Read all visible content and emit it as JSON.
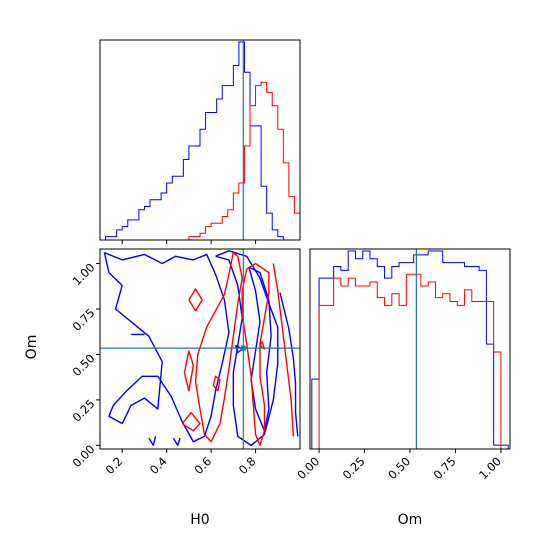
{
  "chart_data": {
    "type": "corner",
    "series_colors": [
      "#0000ff",
      "#ff0000"
    ],
    "truth_color": "#1f77b4",
    "truth": {
      "H0": 0.745,
      "Om": 0.535
    },
    "axes": [
      {
        "id": "hist_H0",
        "type": "histogram",
        "xlim": [
          0.1,
          1.0
        ],
        "xticks": [
          0.2,
          0.4,
          0.6,
          0.8
        ],
        "show_tick_labels": false,
        "bin_edges": [
          0.1,
          0.125,
          0.15,
          0.175,
          0.2,
          0.225,
          0.25,
          0.275,
          0.3,
          0.325,
          0.35,
          0.375,
          0.4,
          0.425,
          0.45,
          0.475,
          0.5,
          0.525,
          0.55,
          0.575,
          0.6,
          0.625,
          0.65,
          0.675,
          0.7,
          0.725,
          0.75,
          0.775,
          0.8,
          0.825,
          0.85,
          0.875,
          0.9,
          0.925,
          0.95,
          0.975,
          1.0
        ],
        "series": [
          {
            "color": "#0000ff",
            "values": [
              0,
              0.2,
              0.2,
              0.6,
              0.8,
              1.2,
              1.2,
              1.8,
              2.0,
              2.4,
              2.4,
              2.8,
              3.4,
              3.8,
              3.8,
              4.8,
              5.6,
              5.6,
              6.6,
              7.6,
              7.6,
              8.4,
              9.2,
              9.2,
              10.4,
              11.8,
              10.0,
              6.8,
              6.8,
              3.2,
              1.6,
              0.6,
              0.2,
              0,
              0,
              0
            ]
          },
          {
            "color": "#ff0000",
            "values": [
              0,
              0,
              0,
              0,
              0,
              0,
              0,
              0,
              0,
              0,
              0,
              0,
              0,
              0,
              0,
              0,
              0.2,
              0.2,
              0.4,
              0.8,
              1.0,
              1.0,
              1.4,
              1.8,
              2.8,
              3.4,
              5.6,
              8.0,
              9.2,
              9.4,
              8.8,
              8.0,
              6.6,
              4.6,
              2.6,
              1.6
            ]
          }
        ]
      },
      {
        "id": "contour_H0_Om",
        "type": "contour",
        "xlabel": "H0",
        "ylabel": "Om",
        "xlim": [
          0.1,
          1.0
        ],
        "ylim": [
          -0.02,
          1.08
        ],
        "xticks": [
          0.2,
          0.4,
          0.6,
          0.8
        ],
        "xticklabels": [
          "0.2",
          "0.4",
          "0.6",
          "0.8"
        ],
        "yticks": [
          0.0,
          0.25,
          0.5,
          0.75,
          1.0
        ],
        "yticklabels": [
          "0.00",
          "0.25",
          "0.50",
          "0.75",
          "1.00"
        ],
        "series": [
          {
            "color": "#0000ff",
            "contours": [
              [
                [
                  0.12,
                  1.06
                ],
                [
                  0.2,
                  1.02
                ],
                [
                  0.3,
                  1.05
                ],
                [
                  0.38,
                  1.0
                ],
                [
                  0.44,
                  1.04
                ],
                [
                  0.52,
                  1.02
                ],
                [
                  0.58,
                  1.05
                ],
                [
                  0.62,
                  0.94
                ],
                [
                  0.66,
                  0.8
                ],
                [
                  0.68,
                  0.62
                ],
                [
                  0.65,
                  0.45
                ],
                [
                  0.62,
                  0.3
                ],
                [
                  0.6,
                  0.16
                ],
                [
                  0.57,
                  0.05
                ],
                [
                  0.52,
                  0.02
                ],
                [
                  0.47,
                  0.13
                ],
                [
                  0.42,
                  0.27
                ],
                [
                  0.36,
                  0.38
                ],
                [
                  0.29,
                  0.38
                ],
                [
                  0.22,
                  0.3
                ],
                [
                  0.16,
                  0.22
                ],
                [
                  0.14,
                  0.16
                ],
                [
                  0.2,
                  0.12
                ],
                [
                  0.24,
                  0.22
                ],
                [
                  0.3,
                  0.26
                ],
                [
                  0.36,
                  0.2
                ],
                [
                  0.38,
                  0.46
                ],
                [
                  0.32,
                  0.6
                ],
                [
                  0.24,
                  0.68
                ],
                [
                  0.17,
                  0.75
                ],
                [
                  0.2,
                  0.88
                ],
                [
                  0.14,
                  0.95
                ],
                [
                  0.12,
                  1.06
                ]
              ],
              [
                [
                  0.62,
                  1.04
                ],
                [
                  0.68,
                  1.02
                ],
                [
                  0.72,
                  0.88
                ],
                [
                  0.74,
                  0.7
                ],
                [
                  0.72,
                  0.55
                ],
                [
                  0.7,
                  0.4
                ],
                [
                  0.7,
                  0.22
                ],
                [
                  0.72,
                  0.05
                ],
                [
                  0.78,
                  0.0
                ],
                [
                  0.84,
                  0.06
                ],
                [
                  0.88,
                  0.25
                ],
                [
                  0.9,
                  0.45
                ],
                [
                  0.9,
                  0.65
                ],
                [
                  0.86,
                  0.78
                ],
                [
                  0.82,
                  0.92
                ],
                [
                  0.76,
                  1.04
                ],
                [
                  0.68,
                  1.07
                ],
                [
                  0.62,
                  1.04
                ]
              ],
              [
                [
                  0.77,
                  0.98
                ],
                [
                  0.8,
                  0.85
                ],
                [
                  0.82,
                  0.68
                ],
                [
                  0.8,
                  0.52
                ],
                [
                  0.78,
                  0.36
                ],
                [
                  0.8,
                  0.2
                ],
                [
                  0.84,
                  0.08
                ],
                [
                  0.86,
                  0.2
                ],
                [
                  0.85,
                  0.4
                ],
                [
                  0.87,
                  0.6
                ],
                [
                  0.86,
                  0.8
                ],
                [
                  0.82,
                  0.95
                ],
                [
                  0.77,
                  0.98
                ]
              ],
              [
                [
                  0.91,
                  0.84
                ],
                [
                  0.95,
                  0.64
                ],
                [
                  0.97,
                  0.48
                ],
                [
                  0.98,
                  0.34
                ],
                [
                  0.98,
                  0.18
                ],
                [
                  0.99,
                  0.05
                ]
              ],
              [
                [
                  0.32,
                  0.04
                ],
                [
                  0.34,
                  0.0
                ],
                [
                  0.35,
                  0.05
                ]
              ],
              [
                [
                  0.43,
                  0.04
                ],
                [
                  0.45,
                  0.0
                ],
                [
                  0.46,
                  0.04
                ]
              ],
              [
                [
                  0.24,
                  0.61
                ],
                [
                  0.3,
                  0.61
                ]
              ],
              [
                [
                  0.71,
                  0.55
                ],
                [
                  0.74,
                  0.53
                ],
                [
                  0.72,
                  0.51
                ],
                [
                  0.71,
                  0.55
                ]
              ]
            ]
          },
          {
            "color": "#ff0000",
            "contours": [
              [
                [
                  0.7,
                  1.06
                ],
                [
                  0.68,
                  0.94
                ],
                [
                  0.66,
                  0.83
                ],
                [
                  0.62,
                  0.74
                ],
                [
                  0.58,
                  0.65
                ],
                [
                  0.54,
                  0.5
                ],
                [
                  0.53,
                  0.35
                ],
                [
                  0.55,
                  0.2
                ],
                [
                  0.57,
                  0.06
                ],
                [
                  0.6,
                  0.02
                ],
                [
                  0.64,
                  0.12
                ],
                [
                  0.66,
                  0.26
                ],
                [
                  0.68,
                  0.42
                ],
                [
                  0.7,
                  0.6
                ],
                [
                  0.72,
                  0.78
                ],
                [
                  0.74,
                  0.92
                ],
                [
                  0.72,
                  1.04
                ],
                [
                  0.7,
                  1.06
                ]
              ],
              [
                [
                  0.76,
                  0.97
                ],
                [
                  0.74,
                  0.85
                ],
                [
                  0.74,
                  0.72
                ],
                [
                  0.76,
                  0.56
                ],
                [
                  0.78,
                  0.38
                ],
                [
                  0.79,
                  0.22
                ],
                [
                  0.8,
                  0.06
                ],
                [
                  0.82,
                  0.0
                ],
                [
                  0.84,
                  0.08
                ],
                [
                  0.84,
                  0.22
                ],
                [
                  0.82,
                  0.38
                ],
                [
                  0.82,
                  0.56
                ],
                [
                  0.84,
                  0.7
                ],
                [
                  0.86,
                  0.84
                ],
                [
                  0.86,
                  0.95
                ],
                [
                  0.8,
                  1.0
                ],
                [
                  0.76,
                  0.97
                ]
              ],
              [
                [
                  0.88,
                  1.0
                ],
                [
                  0.9,
                  0.85
                ],
                [
                  0.92,
                  0.65
                ],
                [
                  0.94,
                  0.45
                ],
                [
                  0.96,
                  0.25
                ],
                [
                  0.97,
                  0.05
                ]
              ],
              [
                [
                  0.47,
                  0.12
                ],
                [
                  0.52,
                  0.08
                ],
                [
                  0.55,
                  0.12
                ],
                [
                  0.51,
                  0.18
                ],
                [
                  0.47,
                  0.12
                ]
              ],
              [
                [
                  0.48,
                  0.4
                ],
                [
                  0.5,
                  0.3
                ],
                [
                  0.52,
                  0.44
                ],
                [
                  0.5,
                  0.52
                ],
                [
                  0.48,
                  0.4
                ]
              ],
              [
                [
                  0.5,
                  0.8
                ],
                [
                  0.53,
                  0.74
                ],
                [
                  0.56,
                  0.8
                ],
                [
                  0.53,
                  0.86
                ],
                [
                  0.5,
                  0.8
                ]
              ],
              [
                [
                  0.61,
                  0.33
                ],
                [
                  0.63,
                  0.3
                ],
                [
                  0.64,
                  0.36
                ],
                [
                  0.62,
                  0.38
                ],
                [
                  0.61,
                  0.33
                ]
              ],
              [
                [
                  0.82,
                  0.55
                ],
                [
                  0.84,
                  0.53
                ],
                [
                  0.83,
                  0.57
                ],
                [
                  0.82,
                  0.55
                ]
              ]
            ]
          }
        ]
      },
      {
        "id": "hist_Om",
        "type": "histogram",
        "xlabel": "Om",
        "xlim": [
          -0.05,
          1.05
        ],
        "xticks": [
          0.0,
          0.25,
          0.5,
          0.75,
          1.0
        ],
        "xticklabels": [
          "0.00",
          "0.25",
          "0.50",
          "0.75",
          "1.00"
        ],
        "bin_edges": [
          -0.04,
          0.0,
          0.04,
          0.08,
          0.12,
          0.16,
          0.2,
          0.24,
          0.28,
          0.32,
          0.36,
          0.4,
          0.44,
          0.48,
          0.52,
          0.56,
          0.6,
          0.64,
          0.68,
          0.72,
          0.76,
          0.8,
          0.84,
          0.88,
          0.92,
          0.96,
          1.0,
          1.04
        ],
        "series": [
          {
            "color": "#0000ff",
            "values": [
              3.6,
              8.8,
              8.8,
              9.4,
              9.2,
              10.2,
              9.8,
              10.2,
              9.8,
              9.4,
              8.8,
              9.4,
              9.6,
              9.6,
              10.0,
              10.0,
              10.2,
              10.2,
              9.6,
              9.6,
              9.6,
              9.4,
              9.4,
              9.2,
              5.4,
              0.2,
              0.2
            ]
          },
          {
            "color": "#ff0000",
            "values": [
              0,
              7.4,
              7.4,
              8.8,
              8.4,
              8.8,
              8.4,
              8.4,
              8.6,
              7.8,
              7.4,
              8.0,
              7.4,
              9.0,
              9.0,
              8.4,
              8.6,
              7.8,
              8.0,
              7.6,
              7.4,
              8.2,
              7.6,
              7.6,
              7.6,
              5.0,
              0
            ]
          }
        ]
      }
    ]
  }
}
